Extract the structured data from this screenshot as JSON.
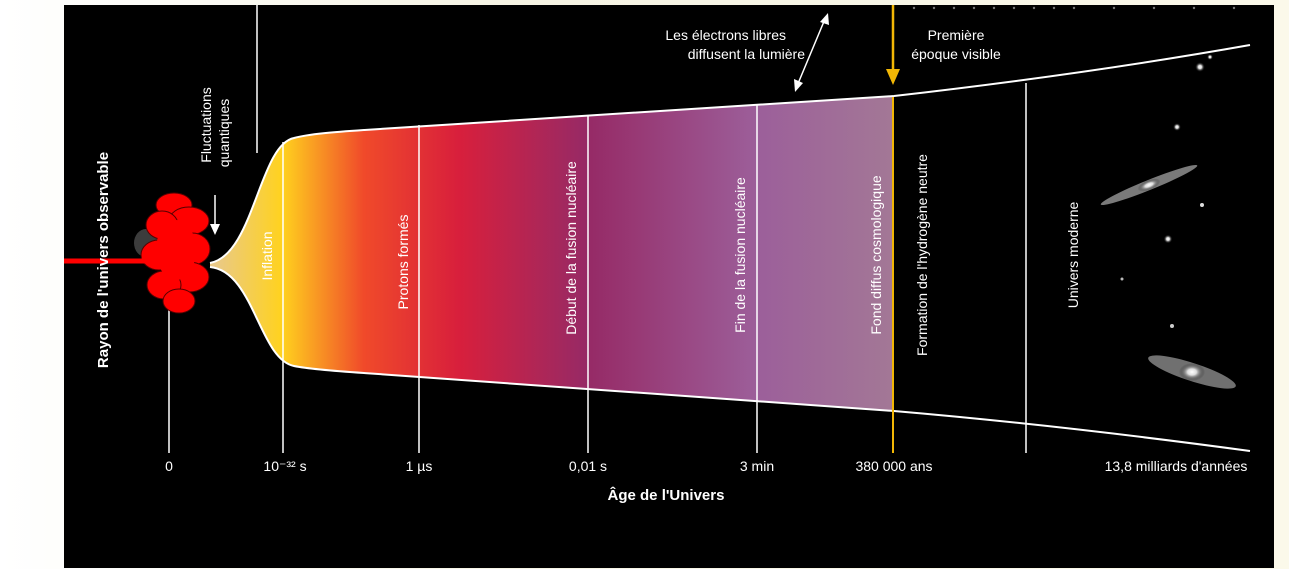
{
  "y_axis_label": "Rayon de l'univers observable",
  "x_axis_label": "Âge de l'Univers",
  "ticks": [
    {
      "label": "0"
    },
    {
      "label": "10⁻³² s"
    },
    {
      "label": "1 µs"
    },
    {
      "label": "0,01 s"
    },
    {
      "label": "3 min"
    },
    {
      "label": "380 000 ans"
    },
    {
      "label": "13,8 milliards d'années"
    }
  ],
  "phases": {
    "inflation": "Inflation",
    "protons": "Protons formés",
    "fusion_start": "Début de la fusion nucléaire",
    "fusion_end": "Fin de la fusion nucléaire",
    "cmb": "Fond diffus cosmologique",
    "neutral_h": "Formation de l'hydrogène neutre",
    "modern": "Univers moderne"
  },
  "annotations": {
    "quantum_fluctuations": [
      "Fluctuations",
      "quantiques"
    ],
    "free_electrons": [
      "Les électrons libres",
      "diffusent la lumière"
    ],
    "first_visible": [
      "Première",
      "époque visible"
    ]
  },
  "colors": {
    "background": "#000000",
    "line": "#ffffff",
    "marker_arrow": "#f2b705",
    "big_bang": "#ff0000",
    "gradient": [
      "#e9c98a",
      "#ffd21e",
      "#f04a2a",
      "#d81f3c",
      "#962a66",
      "#9c5f9a",
      "#a37896"
    ]
  }
}
